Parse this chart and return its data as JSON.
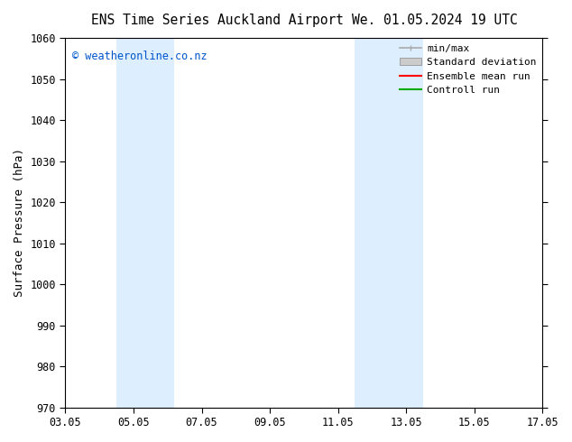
{
  "title_left": "ENS Time Series Auckland Airport",
  "title_right": "We. 01.05.2024 19 UTC",
  "ylabel": "Surface Pressure (hPa)",
  "ylim": [
    970,
    1060
  ],
  "yticks": [
    970,
    980,
    990,
    1000,
    1010,
    1020,
    1030,
    1040,
    1050,
    1060
  ],
  "xlim_num": [
    0,
    14
  ],
  "xtick_positions": [
    0,
    2,
    4,
    6,
    8,
    10,
    12,
    14
  ],
  "xtick_labels": [
    "03.05",
    "05.05",
    "07.05",
    "09.05",
    "11.05",
    "13.05",
    "15.05",
    "17.05"
  ],
  "shaded_bands": [
    {
      "xmin": 1.5,
      "xmax": 3.2,
      "color": "#ddeeff"
    },
    {
      "xmin": 8.5,
      "xmax": 10.5,
      "color": "#ddeeff"
    }
  ],
  "watermark": "© weatheronline.co.nz",
  "watermark_color": "#0055cc",
  "background_color": "#ffffff",
  "legend_items": [
    {
      "label": "min/max",
      "color": "#aaaaaa",
      "type": "rangeline"
    },
    {
      "label": "Standard deviation",
      "color": "#cccccc",
      "type": "box"
    },
    {
      "label": "Ensemble mean run",
      "color": "#ff0000",
      "type": "line"
    },
    {
      "label": "Controll run",
      "color": "#00aa00",
      "type": "line"
    }
  ],
  "title_fontsize": 10.5,
  "ylabel_fontsize": 9,
  "tick_fontsize": 8.5,
  "legend_fontsize": 8,
  "font_family": "DejaVu Sans Mono"
}
